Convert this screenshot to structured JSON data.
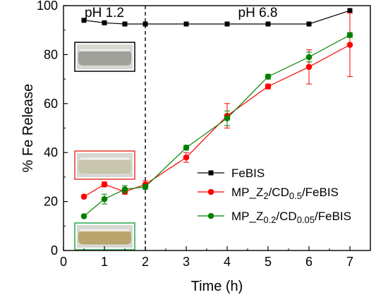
{
  "chart_data": {
    "type": "line",
    "title": "",
    "xlabel": "Time (h)",
    "ylabel": "% Fe Release",
    "xlim": [
      0,
      7.5
    ],
    "ylim": [
      0,
      100
    ],
    "xticks": [
      "0",
      "1",
      "2",
      "3",
      "4",
      "5",
      "6",
      "7"
    ],
    "yticks": [
      "0",
      "20",
      "40",
      "60",
      "80",
      "100"
    ],
    "divider_x": 2,
    "regions": [
      {
        "label": "pH 1.2"
      },
      {
        "label": "pH 6.8"
      }
    ],
    "grid": false,
    "legend_position": "right",
    "series": [
      {
        "name": "FeBIS",
        "color": "#000000",
        "marker": "square",
        "x": [
          0.5,
          1,
          1.5,
          2,
          3,
          4,
          5,
          6,
          7
        ],
        "y": [
          94,
          93,
          92.5,
          92.5,
          92.5,
          92.5,
          92.5,
          92.5,
          98
        ],
        "err": [
          0,
          0,
          0,
          0,
          0,
          0,
          0,
          0,
          0
        ]
      },
      {
        "name": "MP_Z2/CD0.5/FeBIS",
        "legend_parts": [
          [
            "MP_Z",
            "n"
          ],
          [
            "2",
            "sub"
          ],
          [
            "/CD",
            "n"
          ],
          [
            "0.5",
            "sub"
          ],
          [
            "/FeBIS",
            "n"
          ]
        ],
        "color": "#ff0000",
        "marker": "circle",
        "x": [
          0.5,
          1,
          1.5,
          2,
          3,
          4,
          5,
          6,
          7
        ],
        "y": [
          22,
          27,
          24,
          27,
          38,
          55,
          67,
          75,
          84
        ],
        "err": [
          0,
          1,
          1,
          1.5,
          2,
          5,
          1,
          7,
          13
        ]
      },
      {
        "name": "MP_Z0.2/CD0.05/FeBIS",
        "legend_parts": [
          [
            "MP_Z",
            "n"
          ],
          [
            "0.2",
            "sub"
          ],
          [
            "/CD",
            "n"
          ],
          [
            "0.05",
            "sub"
          ],
          [
            "/FeBIS",
            "n"
          ]
        ],
        "color": "#008000",
        "marker": "circle",
        "x": [
          0.5,
          1,
          1.5,
          2,
          3,
          4,
          5,
          6,
          7
        ],
        "y": [
          14,
          21,
          25,
          26,
          42,
          54,
          71,
          79,
          88
        ],
        "err": [
          0,
          2,
          1.5,
          1,
          1,
          3,
          1,
          2,
          1
        ]
      }
    ],
    "insets": [
      {
        "name": "febis-vial-photo",
        "border": "#000000",
        "tint": "#a0a09a"
      },
      {
        "name": "mp-z2-vial-photo",
        "border": "#e8362c",
        "tint": "#c9c6ae"
      },
      {
        "name": "mp-z02-vial-photo",
        "border": "#21a84c",
        "tint": "#b8a46c"
      }
    ]
  }
}
